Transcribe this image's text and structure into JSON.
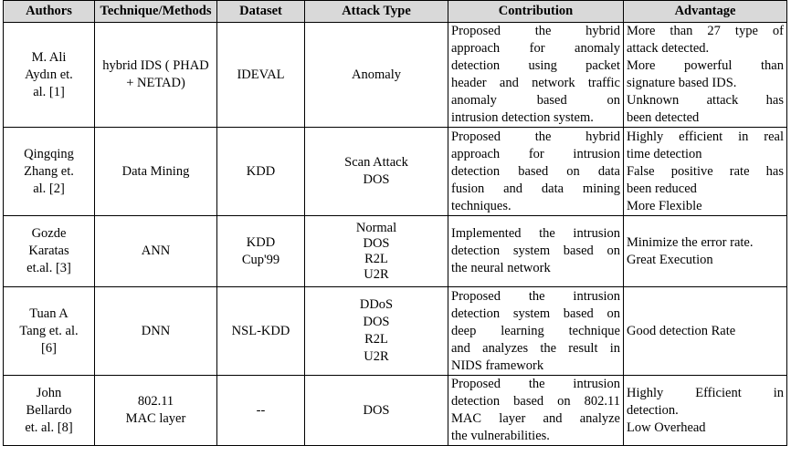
{
  "headers": [
    "Authors",
    "Technique/Methods",
    "Dataset",
    "Attack Type",
    "Contribution",
    "Advantage"
  ],
  "rows": [
    {
      "authors": [
        "M. Ali",
        "Aydın et.",
        "al. [1]"
      ],
      "technique": [
        "hybrid IDS ( PHAD",
        "+ NETAD)"
      ],
      "dataset": [
        "IDEVAL"
      ],
      "attack": [
        "Anomaly"
      ],
      "contribution": [
        "Proposed the hybrid",
        "approach for anomaly",
        "detection using packet",
        "header and network traffic",
        "anomaly based on",
        "intrusion detection system."
      ],
      "advantage": [
        "More than 27 type of",
        "attack detected.",
        "More powerful than",
        "signature based IDS.",
        "Unknown attack has",
        "been detected"
      ]
    },
    {
      "authors": [
        "Qingqing",
        "Zhang et.",
        "al. [2]"
      ],
      "technique": [
        "Data Mining"
      ],
      "dataset": [
        "KDD"
      ],
      "attack": [
        "Scan Attack",
        "DOS"
      ],
      "contribution": [
        "Proposed the hybrid",
        "approach for intrusion",
        "detection based on data",
        "fusion and data mining",
        "techniques."
      ],
      "advantage": [
        "Highly efficient in real",
        "time detection",
        "False positive rate has",
        "been reduced",
        "More Flexible"
      ]
    },
    {
      "authors": [
        "Gozde",
        "Karatas",
        "et.al. [3]"
      ],
      "technique": [
        "ANN"
      ],
      "dataset": [
        "KDD",
        "Cup'99"
      ],
      "attack": [
        "Normal",
        "DOS",
        "R2L",
        "U2R"
      ],
      "contribution": [
        "Implemented the intrusion",
        "detection system based on",
        "the neural network"
      ],
      "advantage": [
        "Minimize the error rate.",
        "Great Execution"
      ]
    },
    {
      "authors": [
        "Tuan A",
        "Tang et. al.",
        "[6]"
      ],
      "technique": [
        "DNN"
      ],
      "dataset": [
        "NSL-KDD"
      ],
      "attack": [
        "DDoS",
        "DOS",
        "R2L",
        "U2R"
      ],
      "contribution": [
        "Proposed the intrusion",
        "detection system based on",
        "deep learning technique",
        "and analyzes the result in",
        "NIDS framework"
      ],
      "advantage": [
        "Good detection Rate"
      ]
    },
    {
      "authors": [
        "John",
        "Bellardo",
        "et. al. [8]"
      ],
      "technique": [
        "802.11",
        "MAC layer"
      ],
      "dataset": [
        "--"
      ],
      "attack": [
        "DOS"
      ],
      "contribution": [
        "Proposed the intrusion",
        "detection based on 802.11",
        "MAC layer and analyze",
        "the vulnerabilities."
      ],
      "advantage": [
        "Highly Efficient in",
        "detection.",
        "Low Overhead"
      ]
    }
  ]
}
